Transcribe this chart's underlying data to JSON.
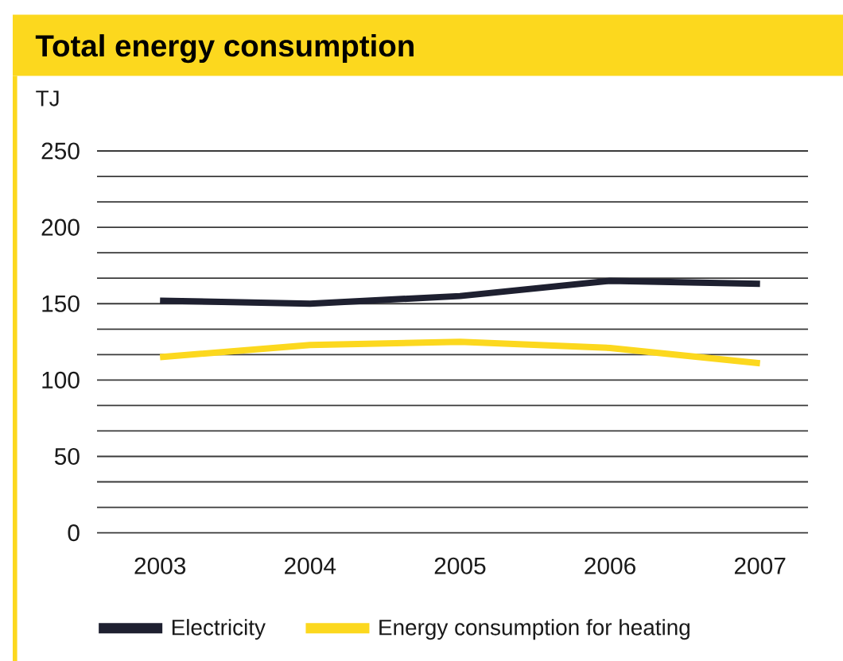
{
  "chart_data": {
    "type": "line",
    "title": "Total energy consumption",
    "ylabel": "TJ",
    "categories": [
      "2003",
      "2004",
      "2005",
      "2006",
      "2007"
    ],
    "series": [
      {
        "name": "Electricity",
        "color": "#1e2030",
        "values": [
          152,
          150,
          155,
          165,
          163
        ]
      },
      {
        "name": "Energy consumption for heating",
        "color": "#fcd81e",
        "values": [
          115,
          123,
          125,
          121,
          111
        ]
      }
    ],
    "ylim": [
      0,
      250
    ],
    "yticks": [
      0,
      {
        "value": 16.67,
        "label": null
      },
      {
        "value": 33.33,
        "label": null
      },
      50,
      {
        "value": 66.67,
        "label": null
      },
      {
        "value": 83.33,
        "label": null
      },
      100,
      {
        "value": 116.67,
        "label": null
      },
      {
        "value": 133.33,
        "label": null
      },
      150,
      {
        "value": 166.67,
        "label": null
      },
      {
        "value": 183.33,
        "label": null
      },
      200,
      {
        "value": 216.67,
        "label": null
      },
      {
        "value": 233.33,
        "label": null
      },
      250
    ],
    "grid": "y",
    "legend": "bottom",
    "marker": "none",
    "line_style": "solid"
  }
}
